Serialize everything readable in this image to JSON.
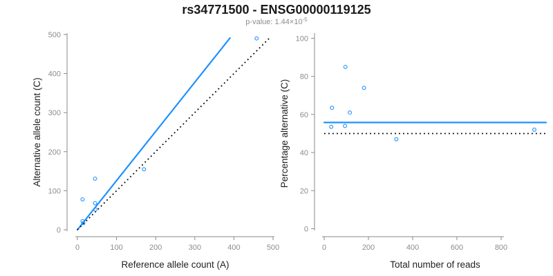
{
  "header": {
    "title": "rs34771500 - ENSG00000119125",
    "subtitle_prefix": "p-value: 1.44×10",
    "subtitle_exponent": "-5"
  },
  "colors": {
    "accent_blue": "#1E90FF",
    "dotted_black": "#000000",
    "axis_gray": "#8a8a8a",
    "tick_label_gray": "#8c8c8c",
    "axis_title_black": "#222222"
  },
  "chart_data": [
    {
      "type": "scatter",
      "name": "allele-counts-plot",
      "xlabel": "Reference allele count (A)",
      "ylabel": "Alternative allele count (C)",
      "xlim": [
        0,
        500
      ],
      "ylim": [
        0,
        500
      ],
      "xticks": [
        0,
        100,
        200,
        300,
        400,
        500
      ],
      "yticks": [
        0,
        100,
        200,
        300,
        400,
        500
      ],
      "grid": false,
      "points": [
        [
          13,
          22
        ],
        [
          15,
          17
        ],
        [
          13,
          78
        ],
        [
          45,
          131
        ],
        [
          45,
          68
        ],
        [
          46,
          52
        ],
        [
          170,
          155
        ],
        [
          458,
          490
        ]
      ],
      "lines": [
        {
          "name": "fitted-ratio-line",
          "style": "solid",
          "color": "#1E90FF",
          "from": [
            0,
            0
          ],
          "to": [
            390,
            491
          ]
        },
        {
          "name": "identity-line",
          "style": "dotted",
          "color": "#000000",
          "from": [
            0,
            0
          ],
          "to": [
            490,
            490
          ]
        }
      ]
    },
    {
      "type": "scatter",
      "name": "percentage-vs-reads-plot",
      "xlabel": "Total number of reads",
      "ylabel": "Percentage alternative (C)",
      "xlim": [
        0,
        800
      ],
      "ylim": [
        0,
        100
      ],
      "xticks": [
        0,
        200,
        400,
        600,
        800
      ],
      "yticks": [
        0,
        20,
        40,
        60,
        80,
        100
      ],
      "grid": false,
      "points": [
        [
          35,
          63.5
        ],
        [
          32,
          53.5
        ],
        [
          96,
          85
        ],
        [
          94,
          54
        ],
        [
          116,
          61
        ],
        [
          180,
          74
        ],
        [
          326,
          47
        ],
        [
          950,
          52
        ]
      ],
      "lines": [
        {
          "name": "mean-percentage-line",
          "style": "solid",
          "color": "#1E90FF",
          "from": [
            0,
            55.8
          ],
          "to": [
            1003,
            55.8
          ]
        },
        {
          "name": "fifty-percent-line",
          "style": "dotted",
          "color": "#000000",
          "from": [
            0,
            50
          ],
          "to": [
            1003,
            50
          ]
        }
      ]
    }
  ]
}
